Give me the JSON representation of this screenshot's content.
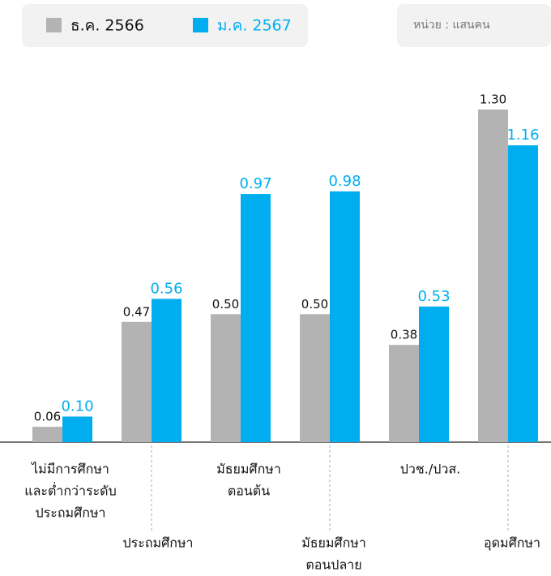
{
  "chart_data": {
    "type": "bar",
    "unit_note": "หน่วย : แสนคน",
    "categories": [
      [
        "ไม่มีการศึกษา",
        "และต่ำกว่าระดับ",
        "ประถมศึกษา"
      ],
      [
        "ประถมศึกษา"
      ],
      [
        "มัธยมศึกษา",
        "ตอนต้น"
      ],
      [
        "มัธยมศึกษา",
        "ตอนปลาย"
      ],
      [
        "ปวช./ปวส."
      ],
      [
        "อุดมศึกษา"
      ]
    ],
    "series": [
      {
        "name": "ธ.ค. 2566",
        "color": "#b3b3b3",
        "values": [
          0.06,
          0.47,
          0.5,
          0.5,
          0.38,
          1.3
        ],
        "value_labels": [
          "0.06",
          "0.47",
          "0.50",
          "0.50",
          "0.38",
          "1.30"
        ]
      },
      {
        "name": "ม.ค. 2567",
        "color": "#00aeef",
        "values": [
          0.1,
          0.56,
          0.97,
          0.98,
          0.53,
          1.16
        ],
        "value_labels": [
          "0.10",
          "0.56",
          "0.97",
          "0.98",
          "0.53",
          "1.16"
        ]
      }
    ],
    "ylim": [
      0,
      1.3
    ]
  }
}
